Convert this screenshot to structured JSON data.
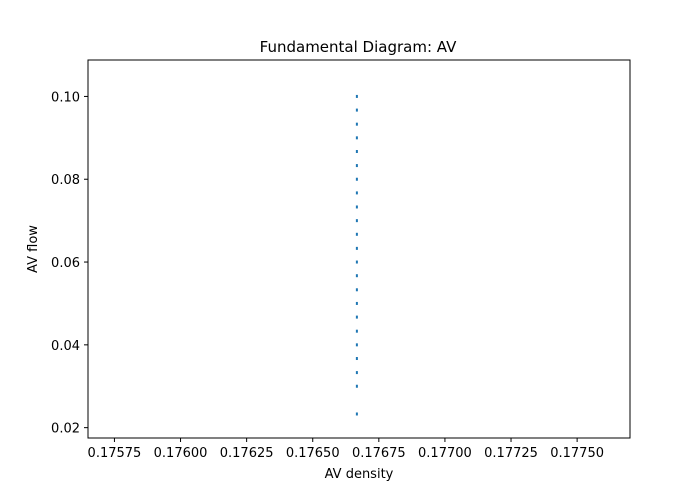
{
  "chart_data": {
    "type": "scatter",
    "title": "Fundamental Diagram: AV",
    "xlabel": "AV density",
    "ylabel": "AV flow",
    "xlim": [
      0.17565,
      0.1777
    ],
    "ylim": [
      0.0175,
      0.1088
    ],
    "xticks": [
      0.17575,
      0.176,
      0.17625,
      0.1765,
      0.17675,
      0.177,
      0.17725,
      0.1775
    ],
    "xtick_labels": [
      "0.17575",
      "0.17600",
      "0.17625",
      "0.17650",
      "0.17675",
      "0.17700",
      "0.17725",
      "0.17750"
    ],
    "yticks": [
      0.02,
      0.04,
      0.06,
      0.08,
      0.1
    ],
    "ytick_labels": [
      "0.02",
      "0.04",
      "0.06",
      "0.08",
      "0.10"
    ],
    "grid": false,
    "marker_color": "#1f77b4",
    "series": [
      {
        "x": [
          0.176667,
          0.176667,
          0.176667,
          0.176667,
          0.176667,
          0.176667,
          0.176667,
          0.176667,
          0.176667,
          0.176667,
          0.176667,
          0.176667,
          0.176667,
          0.176667,
          0.176667,
          0.176667,
          0.176667,
          0.176667,
          0.176667,
          0.176667,
          0.176667,
          0.176667,
          0.176667
        ],
        "y": [
          0.0233,
          0.03,
          0.0333,
          0.0367,
          0.04,
          0.0433,
          0.0467,
          0.05,
          0.0533,
          0.0567,
          0.06,
          0.0633,
          0.0667,
          0.07,
          0.0733,
          0.0767,
          0.08,
          0.0833,
          0.0867,
          0.09,
          0.0933,
          0.0967,
          0.1
        ]
      }
    ]
  }
}
